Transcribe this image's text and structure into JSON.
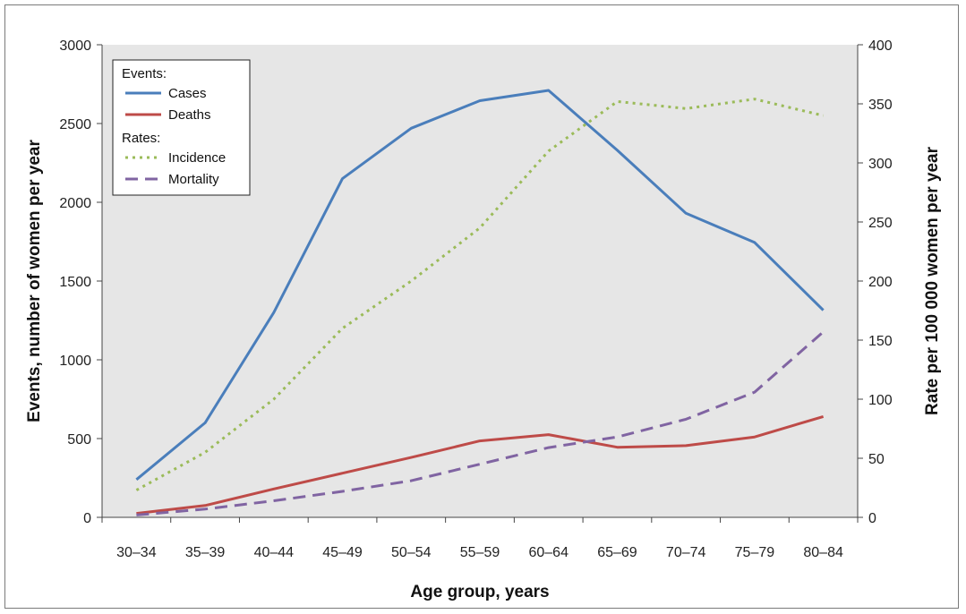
{
  "chart_data": {
    "type": "line",
    "title": "",
    "xlabel": "Age group, years",
    "ylabel": "Events, number of women per year",
    "y2label": "Rate per 100 000 women  per year",
    "categories": [
      "30–34",
      "35–39",
      "40–44",
      "45–49",
      "50–54",
      "55–59",
      "60–64",
      "65–69",
      "70–74",
      "75–79",
      "80–84"
    ],
    "ylim": [
      0,
      3000
    ],
    "y_ticks": [
      "0",
      "500",
      "1000",
      "1500",
      "2000",
      "2500",
      "3000"
    ],
    "y2lim": [
      0,
      400
    ],
    "y2_ticks": [
      "0",
      "50",
      "100",
      "150",
      "200",
      "250",
      "300",
      "350",
      "400"
    ],
    "grid": false,
    "legend_position": "top-left",
    "legend": {
      "events_heading": "Events:",
      "rates_heading": "Rates:"
    },
    "series": [
      {
        "name": "Cases",
        "group": "events",
        "axis": "left",
        "color": "#4a7ebb",
        "style": "solid",
        "values": [
          240,
          600,
          1300,
          2150,
          2470,
          2645,
          2710,
          2330,
          1930,
          1745,
          1315
        ]
      },
      {
        "name": "Deaths",
        "group": "events",
        "axis": "left",
        "color": "#be4b48",
        "style": "solid",
        "values": [
          25,
          75,
          180,
          280,
          380,
          485,
          525,
          445,
          455,
          510,
          640
        ]
      },
      {
        "name": "Incidence",
        "group": "rates",
        "axis": "right",
        "color": "#9bbb59",
        "style": "dotted",
        "values": [
          23,
          55,
          100,
          160,
          200,
          245,
          310,
          352,
          346,
          354,
          340
        ]
      },
      {
        "name": "Mortality",
        "group": "rates",
        "axis": "right",
        "color": "#8064a2",
        "style": "dashed",
        "values": [
          2,
          7,
          14,
          22,
          31,
          45,
          59,
          68,
          83,
          106,
          157
        ]
      }
    ]
  }
}
